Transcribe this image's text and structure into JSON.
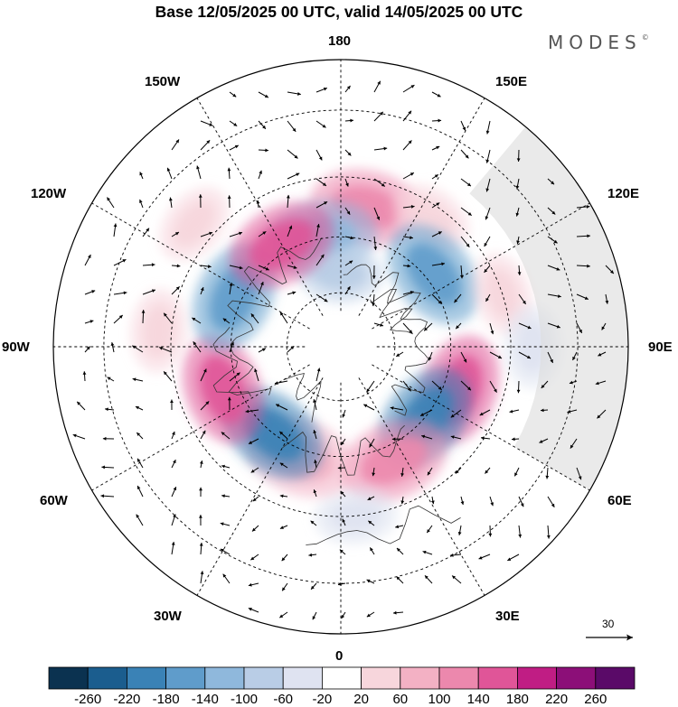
{
  "title": "Base 12/05/2025 00 UTC, valid 14/05/2025 00 UTC",
  "brand": "MODES",
  "brand_mark": "©",
  "longitude_labels": {
    "n180": "180",
    "n150e": "150E",
    "n120e": "120E",
    "n90e": "90E",
    "n60e": "60E",
    "n30e": "30E",
    "n0": "0",
    "n30w": "30W",
    "n60w": "60W",
    "n90w": "90W",
    "n120w": "120W",
    "n150w": "150W"
  },
  "reference_vector": "30",
  "colorbar": {
    "ticks": [
      "-260",
      "-220",
      "-180",
      "-140",
      "-100",
      "-60",
      "-20",
      "20",
      "60",
      "100",
      "140",
      "180",
      "220",
      "260"
    ],
    "colors": [
      "#0b3250",
      "#1b5d8e",
      "#3a82b6",
      "#5f9ccb",
      "#8fb8dc",
      "#b9cde6",
      "#dfe3f1",
      "#ffffff",
      "#f7d6dc",
      "#f3b1c4",
      "#ec88ad",
      "#e05598",
      "#c01d84",
      "#8c0f78",
      "#5a0a68"
    ]
  },
  "anomaly_lobes": [
    {
      "lon": 170,
      "lat": 52,
      "value": 140,
      "color": "#ec88ad"
    },
    {
      "lon": 145,
      "lat": 48,
      "value": 20,
      "color": "#f7d6dc"
    },
    {
      "lon": 190,
      "lat": 60,
      "value": -100,
      "color": "#8fb8dc"
    },
    {
      "lon": 180,
      "lat": 70,
      "value": -60,
      "color": "#b9cde6"
    },
    {
      "lon": 128,
      "lat": 58,
      "value": -180,
      "color": "#5f9ccb"
    },
    {
      "lon": 108,
      "lat": 45,
      "value": 60,
      "color": "#f7d6dc"
    },
    {
      "lon": 90,
      "lat": 40,
      "value": -20,
      "color": "#dfe3f1"
    },
    {
      "lon": 70,
      "lat": 56,
      "value": 180,
      "color": "#e05598"
    },
    {
      "lon": 50,
      "lat": 60,
      "value": -220,
      "color": "#3a82b6"
    },
    {
      "lon": 25,
      "lat": 56,
      "value": 140,
      "color": "#ec88ad"
    },
    {
      "lon": 5,
      "lat": 45,
      "value": -20,
      "color": "#dfe3f1"
    },
    {
      "lon": -20,
      "lat": 58,
      "value": 100,
      "color": "#f3b1c4"
    },
    {
      "lon": -38,
      "lat": 60,
      "value": -220,
      "color": "#3a82b6"
    },
    {
      "lon": -70,
      "lat": 56,
      "value": 180,
      "color": "#e05598"
    },
    {
      "lon": -115,
      "lat": 58,
      "value": -180,
      "color": "#5f9ccb"
    },
    {
      "lon": -150,
      "lat": 58,
      "value": 180,
      "color": "#e05598"
    },
    {
      "lon": -130,
      "lat": 40,
      "value": 60,
      "color": "#f7d6dc"
    },
    {
      "lon": -95,
      "lat": 42,
      "value": 20,
      "color": "#f7d6dc"
    }
  ]
}
